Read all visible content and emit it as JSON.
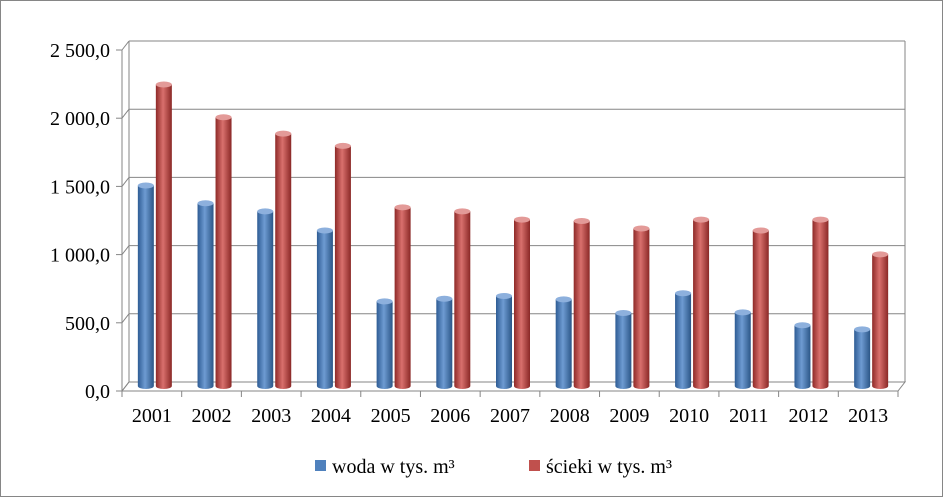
{
  "chart_data": {
    "type": "bar",
    "title": "",
    "xlabel": "",
    "ylabel": "",
    "categories": [
      "2001",
      "2002",
      "2003",
      "2004",
      "2005",
      "2006",
      "2007",
      "2008",
      "2009",
      "2010",
      "2011",
      "2012",
      "2013"
    ],
    "series": [
      {
        "name": "woda w tys. m³",
        "color": "#4F81BD",
        "values": [
          1470,
          1340,
          1280,
          1140,
          620,
          640,
          660,
          635,
          535,
          680,
          540,
          445,
          415
        ]
      },
      {
        "name": "ścieki w tys. m³",
        "color": "#C0504D",
        "values": [
          2210,
          1970,
          1850,
          1760,
          1310,
          1280,
          1220,
          1210,
          1155,
          1220,
          1140,
          1220,
          965
        ]
      }
    ],
    "ylim": [
      0,
      2500
    ],
    "yticks": [
      0,
      500,
      1000,
      1500,
      2000,
      2500
    ],
    "ytick_labels": [
      "0,0",
      "500,0",
      "1 000,0",
      "1 500,0",
      "2 000,0",
      "2 500,0"
    ],
    "grid": true,
    "legend_position": "bottom",
    "style": "3d-cylinder"
  }
}
